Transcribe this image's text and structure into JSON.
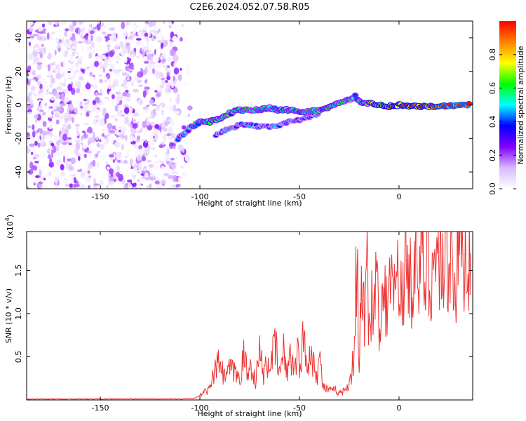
{
  "title": "C2E6.2024.052.07.58.R05",
  "chart_data": [
    {
      "type": "heatmap",
      "xlabel": "Height of straight line (km)",
      "ylabel": "Frequency (Hz)",
      "xlim": [
        -187,
        37
      ],
      "ylim": [
        -50,
        50
      ],
      "x_ticks": [
        -150,
        -100,
        -50,
        0
      ],
      "y_ticks": [
        -40,
        -20,
        0,
        20,
        40
      ],
      "colorbar": {
        "label": "Normalized spectral amplitude",
        "range": [
          0.0,
          1.0
        ],
        "ticks": [
          "0.0",
          "0.2",
          "0.4",
          "0.6",
          "0.8"
        ],
        "colors": [
          "#ffffff",
          "#d9b8ff",
          "#8000ff",
          "#0000ff",
          "#00ffff",
          "#00ff00",
          "#ffff00",
          "#ff8000",
          "#ff0000"
        ]
      },
      "noise_region": {
        "x": [
          -187,
          -103
        ],
        "y": [
          -50,
          50
        ],
        "amplitude": [
          0.0,
          0.25
        ]
      },
      "trace": {
        "x": [
          -111,
          -105,
          -100,
          -95,
          -90,
          -85,
          -80,
          -75,
          -70,
          -65,
          -60,
          -55,
          -50,
          -45,
          -40,
          -35,
          -30,
          -25,
          -22,
          -20,
          -15,
          -10,
          -5,
          0,
          10,
          20,
          30,
          36
        ],
        "y": [
          -20,
          -14,
          -10,
          -10,
          -8,
          -5,
          -3,
          -3,
          -3,
          -2,
          -3,
          -3,
          -4,
          -4,
          -3,
          -1,
          1,
          3,
          5,
          2,
          1,
          0,
          -1,
          0,
          -1,
          -1,
          0,
          0
        ],
        "amplitude": [
          0.35,
          0.4,
          0.5,
          0.6,
          0.55,
          0.5,
          0.55,
          0.5,
          0.5,
          0.5,
          0.55,
          0.55,
          0.5,
          0.5,
          0.5,
          0.55,
          0.5,
          0.5,
          0.45,
          0.55,
          0.6,
          0.75,
          0.8,
          0.85,
          0.85,
          0.9,
          0.95,
          0.95
        ]
      },
      "secondary_trace": {
        "x": [
          -92,
          -85,
          -80,
          -75,
          -70,
          -65,
          -60,
          -55,
          -50,
          -45,
          -40
        ],
        "y": [
          -18,
          -14,
          -12,
          -12,
          -13,
          -13,
          -12,
          -10,
          -9,
          -7,
          -5
        ],
        "amplitude": [
          0.3,
          0.35,
          0.4,
          0.4,
          0.35,
          0.35,
          0.4,
          0.35,
          0.4,
          0.35,
          0.3
        ]
      }
    },
    {
      "type": "line",
      "xlabel": "Height of straight line (km)",
      "ylabel": "SNR (10 * v/v)",
      "y_multiplier": "(x10",
      "y_multiplier_exp": "4",
      "y_multiplier_close": ")",
      "xlim": [
        -187,
        37
      ],
      "ylim": [
        0,
        1.95
      ],
      "x_ticks": [
        -150,
        -100,
        -50,
        0
      ],
      "y_ticks": [
        0.5,
        1.0,
        1.5
      ],
      "y_tick_labels": [
        "0.5",
        "1.0",
        "1.5"
      ],
      "color": "#ee3333",
      "series": {
        "x": [
          -187,
          -150,
          -110,
          -103,
          -100,
          -97,
          -95,
          -93,
          -90,
          -88,
          -85,
          -82,
          -80,
          -78,
          -76,
          -74,
          -72,
          -70,
          -68,
          -65,
          -62,
          -60,
          -58,
          -56,
          -55,
          -53,
          -51,
          -50,
          -48,
          -46,
          -45,
          -43,
          -41,
          -40,
          -38,
          -36,
          -34,
          -32,
          -30,
          -28,
          -26,
          -24,
          -23,
          -22,
          -21,
          -20.5,
          -20,
          -19.5,
          -18,
          -17,
          -16,
          -15,
          -14,
          -13,
          -12,
          -11,
          -10,
          -9,
          -8,
          -7,
          -6,
          -5,
          -4,
          -3,
          -2,
          -1,
          0,
          1,
          2,
          4,
          6,
          8,
          10,
          12,
          14,
          16,
          18,
          20,
          22,
          24,
          26,
          28,
          30,
          32,
          34,
          36
        ],
        "values": [
          0.01,
          0.012,
          0.012,
          0.02,
          0.05,
          0.1,
          0.12,
          0.3,
          0.45,
          0.25,
          0.35,
          0.3,
          0.25,
          0.5,
          0.3,
          0.4,
          0.22,
          0.55,
          0.3,
          0.45,
          0.6,
          0.3,
          0.55,
          0.28,
          0.65,
          0.35,
          0.55,
          0.4,
          0.7,
          0.35,
          0.6,
          0.45,
          0.3,
          0.5,
          0.15,
          0.12,
          0.1,
          0.12,
          0.08,
          0.1,
          0.15,
          0.3,
          0.45,
          0.9,
          1.95,
          0.6,
          0.25,
          1.0,
          1.3,
          0.9,
          1.5,
          0.95,
          1.2,
          1.05,
          1.1,
          1.78,
          1.0,
          1.25,
          0.95,
          1.3,
          1.05,
          1.35,
          1.2,
          1.4,
          1.15,
          1.5,
          1.2,
          1.3,
          1.45,
          1.6,
          1.3,
          1.95,
          1.4,
          1.55,
          1.45,
          1.6,
          1.55,
          1.65,
          1.6,
          1.65,
          1.65,
          1.45,
          1.65,
          1.68,
          1.7,
          1.7
        ]
      }
    }
  ]
}
